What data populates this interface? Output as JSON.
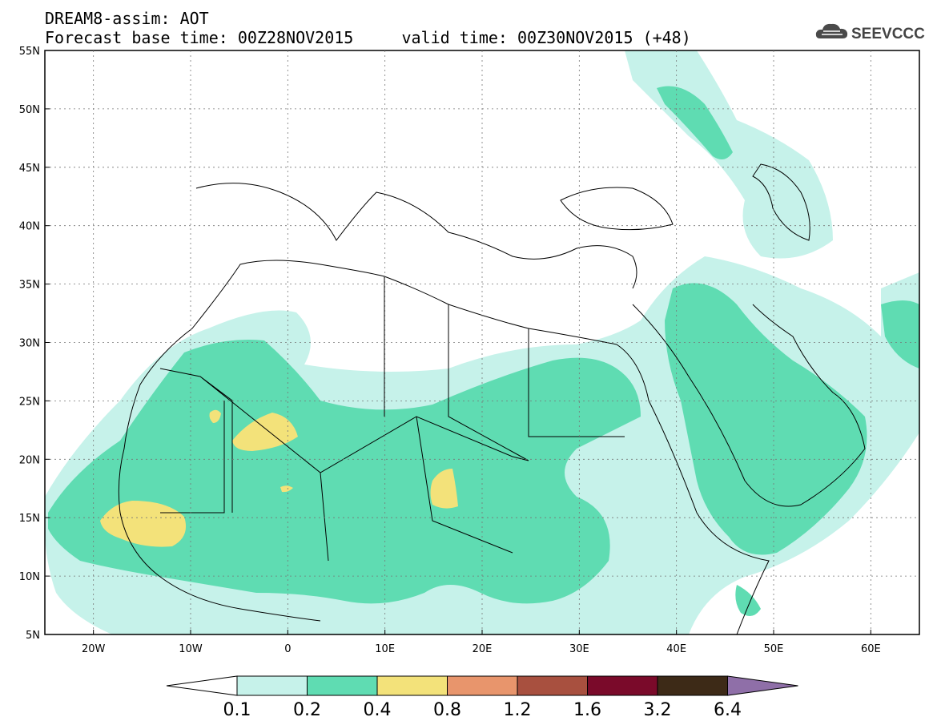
{
  "header": {
    "title_line1": "DREAM8-assim: AOT",
    "title_line2": "Forecast base time: 00Z28NOV2015     valid time: 00Z30NOV2015 (+48)"
  },
  "logo": {
    "text": "SEEVCCC",
    "icon": "cloud-icon",
    "color": "#444444"
  },
  "map": {
    "lon_range": [
      -25,
      65
    ],
    "lat_range": [
      5,
      55
    ],
    "lat_labels": [
      "55N",
      "50N",
      "45N",
      "40N",
      "35N",
      "30N",
      "25N",
      "20N",
      "15N",
      "10N",
      "5N"
    ],
    "lon_labels": [
      "20W",
      "10W",
      "0",
      "10E",
      "20E",
      "30E",
      "40E",
      "50E",
      "60E"
    ],
    "grid": "dashed"
  },
  "colorbar": {
    "levels": [
      "0.1",
      "0.2",
      "0.4",
      "0.8",
      "1.2",
      "1.6",
      "3.2",
      "6.4"
    ],
    "colors": [
      "#c6f2ea",
      "#5fdcb2",
      "#f3e27a",
      "#e8956c",
      "#a8503f",
      "#7a0a2a",
      "#3d2a17",
      "#8f6fa8"
    ]
  }
}
